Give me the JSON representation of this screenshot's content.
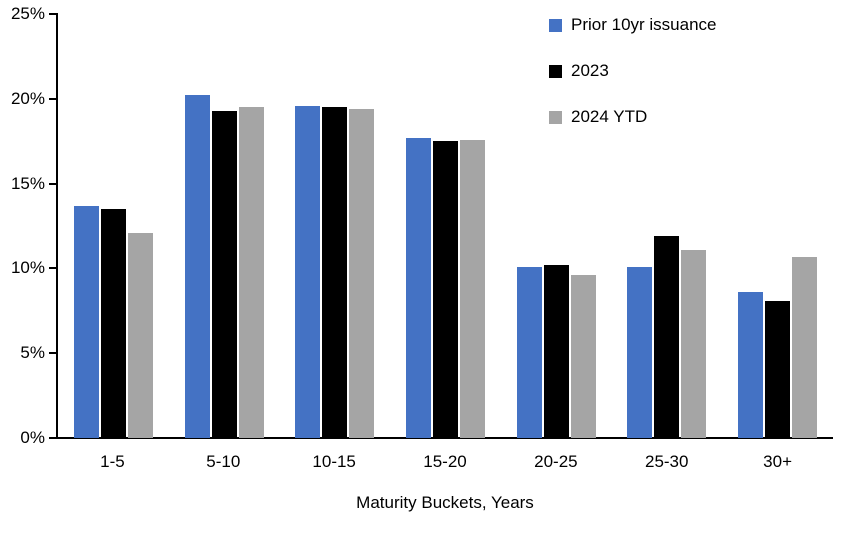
{
  "chart_data": {
    "type": "bar",
    "title": "",
    "xlabel": "Maturity Buckets, Years",
    "ylabel": "",
    "categories": [
      "1-5",
      "5-10",
      "10-15",
      "15-20",
      "20-25",
      "25-30",
      "30+"
    ],
    "series": [
      {
        "name": "Prior 10yr issuance",
        "color": "#4472C4",
        "values": [
          13.7,
          20.2,
          19.6,
          17.7,
          10.1,
          10.1,
          8.6
        ]
      },
      {
        "name": "2023",
        "color": "#000000",
        "values": [
          13.5,
          19.3,
          19.5,
          17.5,
          10.2,
          11.9,
          8.1
        ]
      },
      {
        "name": "2024 YTD",
        "color": "#A5A5A5",
        "values": [
          12.1,
          19.5,
          19.4,
          17.6,
          9.6,
          11.1,
          10.7
        ]
      }
    ],
    "ylim": [
      0,
      25
    ],
    "ytick_step": 5,
    "ytick_labels": [
      "0%",
      "5%",
      "10%",
      "15%",
      "20%",
      "25%"
    ],
    "grid": false,
    "legend_position": "top-right",
    "axis_color": "#000000",
    "text_color": "#000000"
  }
}
